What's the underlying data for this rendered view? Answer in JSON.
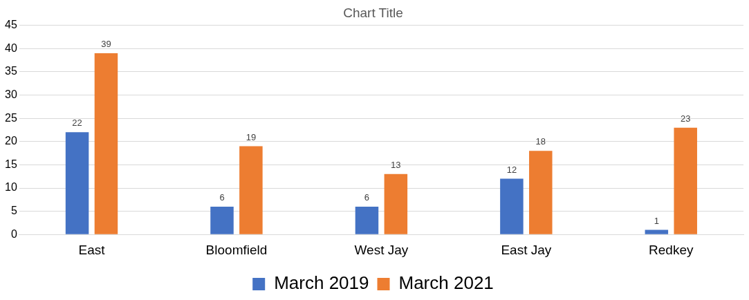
{
  "chart_data": {
    "type": "bar",
    "title": "Chart Title",
    "categories": [
      "East",
      "Bloomfield",
      "West Jay",
      "East Jay",
      "Redkey"
    ],
    "series": [
      {
        "name": "March 2019",
        "color": "#4472c4",
        "values": [
          22,
          6,
          6,
          12,
          1
        ]
      },
      {
        "name": "March 2021",
        "color": "#ed7d31",
        "values": [
          39,
          19,
          13,
          18,
          23
        ]
      }
    ],
    "ylim": [
      0,
      45
    ],
    "yticks": [
      0,
      5,
      10,
      15,
      20,
      25,
      30,
      35,
      40,
      45
    ],
    "grid": "y",
    "legend": "bottom",
    "data_labels": true
  }
}
